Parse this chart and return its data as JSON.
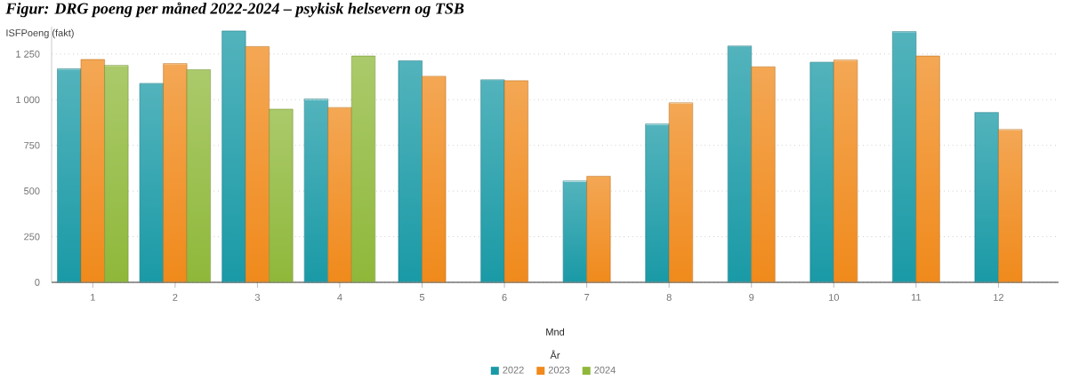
{
  "chart_data": {
    "type": "bar",
    "title": "Figur: DRG poeng per måned 2022-2024 – psykisk helsevern og TSB",
    "ylabel": "ISFPoeng (fakt)",
    "xlabel": "Mnd",
    "legend_title": "År",
    "categories": [
      "1",
      "2",
      "3",
      "4",
      "5",
      "6",
      "7",
      "8",
      "9",
      "10",
      "11",
      "12"
    ],
    "series": [
      {
        "name": "2022",
        "color": "#1a9aa6",
        "values": [
          1169,
          1089,
          1376,
          1004,
          1213,
          1109,
          555,
          867,
          1294,
          1205,
          1373,
          930
        ]
      },
      {
        "name": "2023",
        "color": "#f08a1c",
        "values": [
          1220,
          1198,
          1291,
          957,
          1128,
          1104,
          581,
          983,
          1180,
          1218,
          1239,
          837
        ]
      },
      {
        "name": "2024",
        "color": "#8fb83a",
        "values": [
          1188,
          1164,
          948,
          1239,
          null,
          null,
          null,
          null,
          null,
          null,
          null,
          null
        ]
      }
    ],
    "yticks": [
      0,
      250,
      500,
      750,
      {
        "value": 1000,
        "label": "1 000"
      },
      {
        "value": 1250,
        "label": "1 250"
      }
    ],
    "ylim": [
      0,
      1400
    ],
    "grid": "y",
    "legend": "bottom"
  }
}
